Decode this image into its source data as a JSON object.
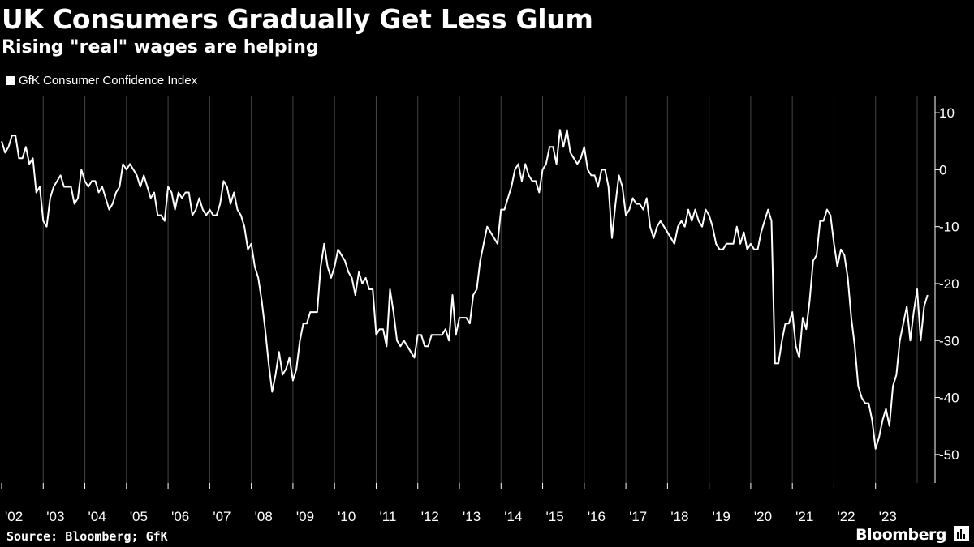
{
  "header": {
    "title": "UK Consumers Gradually Get Less Glum",
    "subtitle": "Rising \"real\" wages are helping",
    "legend_label": "GfK Consumer Confidence Index"
  },
  "footer": {
    "source": "Source: Bloomberg; GfK",
    "brand": "Bloomberg"
  },
  "chart_data": {
    "type": "line",
    "title": "UK Consumers Gradually Get Less Glum",
    "subtitle": "Rising \"real\" wages are helping",
    "xlabel": "",
    "ylabel": "",
    "ylim": [
      -55,
      13
    ],
    "xlim": [
      2002.0,
      2024.0
    ],
    "y_ticks": [
      10,
      0,
      -10,
      -20,
      -30,
      -40,
      -50
    ],
    "y_tick_labels": [
      "10",
      "0",
      "-10",
      "-20",
      "-30",
      "-40",
      "-50"
    ],
    "x_ticks": [
      2002,
      2003,
      2004,
      2005,
      2006,
      2007,
      2008,
      2009,
      2010,
      2011,
      2012,
      2013,
      2014,
      2015,
      2016,
      2017,
      2018,
      2019,
      2020,
      2021,
      2022,
      2023
    ],
    "x_tick_labels": [
      "'02",
      "'03",
      "'04",
      "'05",
      "'06",
      "'07",
      "'08",
      "'09",
      "'10",
      "'11",
      "'12",
      "'13",
      "'14",
      "'15",
      "'16",
      "'17",
      "'18",
      "'19",
      "'20",
      "'21",
      "'22",
      "'23"
    ],
    "grid": "vertical",
    "legend_position": "top-left",
    "series": [
      {
        "name": "GfK Consumer Confidence Index",
        "start": "2002-01",
        "frequency": "monthly",
        "values": [
          5,
          3,
          4,
          6,
          6,
          2,
          2,
          4,
          1,
          2,
          -4,
          -3,
          -9,
          -10,
          -5,
          -3,
          -2,
          -1,
          -3,
          -3,
          -3,
          -6,
          -5,
          0,
          -2,
          -3,
          -2,
          -2,
          -4,
          -3,
          -5,
          -7,
          -6,
          -4,
          -3,
          1,
          0,
          1,
          0,
          -1,
          -3,
          -1,
          -3,
          -5,
          -4,
          -8,
          -8,
          -9,
          -3,
          -4,
          -7,
          -4,
          -5,
          -4,
          -4,
          -8,
          -7,
          -5,
          -7,
          -8,
          -7,
          -8,
          -8,
          -6,
          -2,
          -3,
          -6,
          -4,
          -7,
          -8,
          -10,
          -14,
          -13,
          -17,
          -19,
          -23,
          -28,
          -34,
          -39,
          -36,
          -32,
          -36,
          -35,
          -33,
          -37,
          -35,
          -30,
          -27,
          -27,
          -25,
          -25,
          -25,
          -17,
          -13,
          -17,
          -19,
          -17,
          -14,
          -15,
          -16,
          -18,
          -19,
          -22,
          -18,
          -20,
          -19,
          -21,
          -21,
          -29,
          -28,
          -28,
          -31,
          -21,
          -25,
          -30,
          -31,
          -30,
          -31,
          -32,
          -33,
          -29,
          -29,
          -31,
          -31,
          -29,
          -29,
          -29,
          -29,
          -28,
          -30,
          -22,
          -29,
          -26,
          -26,
          -26,
          -27,
          -22,
          -21,
          -16,
          -13,
          -10,
          -11,
          -12,
          -13,
          -7,
          -7,
          -5,
          -3,
          0,
          1,
          -2,
          1,
          -1,
          -2,
          -2,
          -4,
          0,
          1,
          4,
          4,
          1,
          7,
          4,
          7,
          3,
          2,
          1,
          2,
          4,
          0,
          -1,
          -1,
          -3,
          0,
          0,
          -3,
          -12,
          -6,
          -1,
          -3,
          -8,
          -7,
          -5,
          -6,
          -6,
          -7,
          -5,
          -10,
          -12,
          -10,
          -9,
          -10,
          -11,
          -12,
          -13,
          -10,
          -9,
          -10,
          -7,
          -9,
          -7,
          -9,
          -10,
          -7,
          -8,
          -10,
          -13,
          -14,
          -14,
          -13,
          -13,
          -13,
          -10,
          -13,
          -11,
          -14,
          -13,
          -14,
          -14,
          -11,
          -9,
          -7,
          -9,
          -34,
          -34,
          -30,
          -27,
          -27,
          -25,
          -31,
          -33,
          -26,
          -28,
          -23,
          -16,
          -15,
          -9,
          -9,
          -7,
          -8,
          -13,
          -17,
          -14,
          -15,
          -19,
          -26,
          -31,
          -38,
          -40,
          -41,
          -41,
          -44,
          -49,
          -47,
          -44,
          -42,
          -45,
          -38,
          -36,
          -30,
          -27,
          -24,
          -30,
          -25,
          -21,
          -30,
          -24,
          -22
        ]
      }
    ]
  }
}
